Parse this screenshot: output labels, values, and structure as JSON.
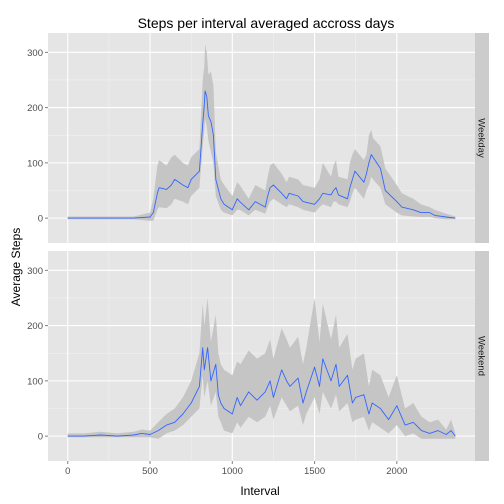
{
  "chart_data": {
    "type": "line",
    "title": "Steps per interval averaged accross days",
    "xlabel": "Interval",
    "ylabel": "Average Steps",
    "xlim": [
      -120,
      2475
    ],
    "ylim": [
      -45,
      335
    ],
    "x_ticks": [
      0,
      500,
      1000,
      1500,
      2000
    ],
    "y_ticks": [
      0,
      100,
      200,
      300
    ],
    "grid": true,
    "band": "shaded confidence ribbon around each line",
    "colors": {
      "line": "#3366ff",
      "ribbon": "#c3c3c3",
      "panel_bg": "#e5e5e5",
      "grid": "#ffffff",
      "strip_bg": "#cccccc"
    },
    "panels": [
      {
        "strip": "Weekday",
        "x": [
          0,
          100,
          200,
          300,
          400,
          500,
          520,
          545,
          555,
          600,
          630,
          650,
          700,
          730,
          750,
          800,
          820,
          830,
          835,
          845,
          855,
          870,
          885,
          900,
          930,
          950,
          1000,
          1030,
          1045,
          1100,
          1140,
          1200,
          1215,
          1230,
          1250,
          1300,
          1330,
          1345,
          1400,
          1430,
          1500,
          1530,
          1550,
          1600,
          1615,
          1630,
          1645,
          1700,
          1715,
          1730,
          1745,
          1800,
          1815,
          1830,
          1845,
          1855,
          1900,
          1915,
          1930,
          2000,
          2030,
          2100,
          2145,
          2200,
          2230,
          2300,
          2355
        ],
        "y": [
          0,
          0,
          0,
          0,
          0,
          2,
          10,
          45,
          55,
          52,
          60,
          70,
          60,
          55,
          70,
          85,
          170,
          205,
          230,
          220,
          185,
          175,
          150,
          70,
          35,
          25,
          15,
          35,
          30,
          15,
          30,
          20,
          40,
          55,
          60,
          45,
          35,
          45,
          40,
          30,
          25,
          35,
          45,
          42,
          50,
          55,
          42,
          35,
          55,
          70,
          85,
          65,
          80,
          100,
          115,
          110,
          90,
          70,
          50,
          30,
          20,
          15,
          10,
          10,
          5,
          2,
          0
        ],
        "low": [
          -2,
          -2,
          -2,
          -2,
          -2,
          -5,
          -5,
          15,
          20,
          18,
          25,
          35,
          30,
          25,
          40,
          55,
          130,
          160,
          180,
          165,
          140,
          120,
          100,
          40,
          15,
          10,
          5,
          15,
          15,
          5,
          15,
          8,
          20,
          30,
          35,
          25,
          20,
          25,
          20,
          15,
          10,
          20,
          25,
          20,
          30,
          30,
          25,
          20,
          30,
          45,
          55,
          35,
          50,
          60,
          75,
          70,
          55,
          40,
          25,
          10,
          5,
          3,
          2,
          2,
          0,
          -2,
          -2
        ],
        "high": [
          3,
          3,
          3,
          3,
          3,
          10,
          35,
          95,
          105,
          95,
          110,
          115,
          100,
          95,
          110,
          125,
          250,
          275,
          315,
          300,
          260,
          265,
          240,
          120,
          70,
          60,
          40,
          65,
          60,
          35,
          60,
          50,
          75,
          95,
          100,
          80,
          65,
          75,
          70,
          60,
          55,
          70,
          100,
          75,
          95,
          105,
          75,
          70,
          100,
          115,
          125,
          105,
          115,
          150,
          160,
          145,
          130,
          110,
          90,
          60,
          45,
          35,
          25,
          20,
          15,
          8,
          3
        ]
      },
      {
        "strip": "Weekend",
        "x": [
          0,
          100,
          200,
          300,
          400,
          450,
          500,
          550,
          600,
          650,
          700,
          750,
          800,
          820,
          830,
          850,
          870,
          900,
          915,
          930,
          950,
          1000,
          1030,
          1050,
          1100,
          1150,
          1200,
          1230,
          1250,
          1300,
          1330,
          1350,
          1400,
          1430,
          1450,
          1500,
          1530,
          1550,
          1600,
          1630,
          1650,
          1700,
          1730,
          1750,
          1800,
          1830,
          1850,
          1900,
          1950,
          2000,
          2050,
          2100,
          2150,
          2200,
          2250,
          2300,
          2330,
          2355
        ],
        "y": [
          0,
          0,
          2,
          0,
          2,
          5,
          3,
          10,
          20,
          25,
          40,
          60,
          90,
          160,
          120,
          160,
          100,
          130,
          75,
          60,
          50,
          40,
          70,
          55,
          80,
          65,
          80,
          100,
          70,
          120,
          100,
          90,
          105,
          60,
          80,
          125,
          90,
          140,
          100,
          130,
          90,
          110,
          60,
          70,
          75,
          40,
          60,
          50,
          30,
          55,
          20,
          25,
          10,
          5,
          10,
          3,
          10,
          0
        ],
        "low": [
          -2,
          -2,
          -2,
          -2,
          -2,
          -2,
          -2,
          -5,
          5,
          10,
          20,
          35,
          50,
          110,
          70,
          100,
          55,
          80,
          35,
          25,
          10,
          5,
          25,
          15,
          35,
          25,
          35,
          55,
          30,
          70,
          55,
          45,
          55,
          20,
          40,
          70,
          40,
          80,
          50,
          75,
          45,
          60,
          25,
          30,
          35,
          10,
          25,
          15,
          5,
          20,
          0,
          5,
          -5,
          -5,
          -5,
          -5,
          -5,
          -5
        ],
        "high": [
          5,
          5,
          8,
          5,
          8,
          12,
          10,
          25,
          40,
          50,
          70,
          100,
          150,
          240,
          200,
          250,
          170,
          220,
          150,
          130,
          120,
          110,
          135,
          130,
          155,
          140,
          150,
          175,
          140,
          195,
          175,
          160,
          180,
          130,
          160,
          250,
          170,
          240,
          175,
          220,
          160,
          185,
          120,
          140,
          150,
          90,
          120,
          110,
          70,
          110,
          50,
          60,
          35,
          25,
          30,
          12,
          30,
          5
        ]
      }
    ]
  }
}
